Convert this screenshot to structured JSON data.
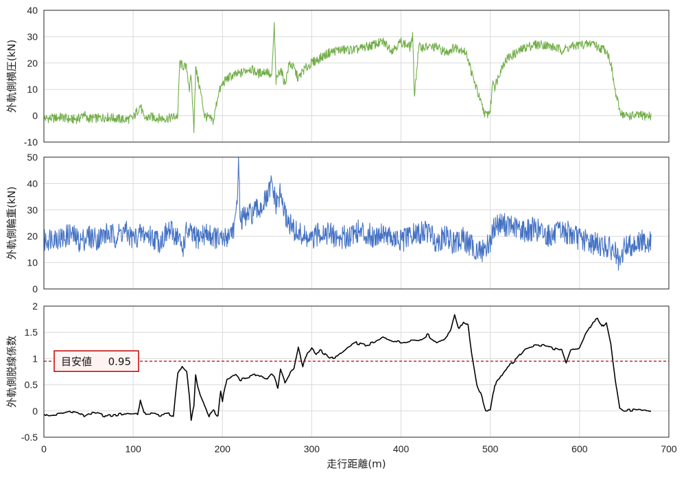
{
  "chart_data": [
    {
      "type": "line",
      "ylabel": "外軌側横圧(kN)",
      "xlim": [
        0,
        700
      ],
      "ylim": [
        -10,
        40
      ],
      "yticks": [
        -10,
        0,
        10,
        20,
        30,
        40
      ],
      "grid": true,
      "series": [
        {
          "color": "#70ad47",
          "x": [
            0,
            10,
            20,
            30,
            40,
            45,
            48,
            50,
            60,
            70,
            80,
            90,
            100,
            108,
            112,
            120,
            130,
            140,
            150,
            152,
            155,
            160,
            163,
            165,
            168,
            170,
            175,
            180,
            185,
            190,
            195,
            200,
            205,
            210,
            220,
            230,
            240,
            250,
            255,
            258,
            260,
            265,
            270,
            275,
            280,
            285,
            290,
            300,
            310,
            320,
            330,
            340,
            350,
            360,
            370,
            380,
            390,
            400,
            410,
            413,
            415,
            420,
            430,
            440,
            450,
            460,
            470,
            475,
            480,
            485,
            490,
            495,
            500,
            503,
            505,
            510,
            515,
            520,
            530,
            540,
            550,
            560,
            570,
            580,
            590,
            600,
            610,
            615,
            620,
            630,
            635,
            640,
            645,
            650,
            660,
            670,
            680
          ],
          "values": [
            -1,
            -1,
            -0.5,
            -1.5,
            -1,
            1,
            -1.5,
            -1,
            -1,
            -0.5,
            -1,
            -1.5,
            -1,
            4,
            -1,
            -0.5,
            -1,
            -1,
            0,
            20,
            19,
            18,
            10,
            15,
            -5,
            18,
            10,
            0,
            -1,
            -2,
            8,
            12,
            14,
            15,
            16,
            18,
            16,
            17,
            14,
            34,
            13,
            18,
            12,
            20,
            18,
            14,
            17,
            20,
            22,
            24,
            25,
            25,
            25,
            26,
            27,
            28,
            25,
            28,
            26,
            30,
            8,
            26,
            26,
            26,
            24,
            26,
            25,
            22,
            15,
            10,
            4,
            0,
            2,
            14,
            11,
            16,
            20,
            22,
            24,
            26,
            27,
            27,
            26,
            25,
            26,
            27,
            27,
            28,
            26,
            25,
            20,
            9,
            2,
            0,
            0,
            0,
            0
          ]
        }
      ]
    },
    {
      "type": "line",
      "ylabel": "外軌側輪重(kN)",
      "xlim": [
        0,
        700
      ],
      "ylim": [
        0,
        50
      ],
      "yticks": [
        0,
        10,
        20,
        30,
        40,
        50
      ],
      "grid": true,
      "series": [
        {
          "color": "#4472c4",
          "x": [
            0,
            10,
            20,
            30,
            40,
            50,
            60,
            70,
            80,
            90,
            100,
            110,
            120,
            130,
            140,
            150,
            155,
            160,
            170,
            180,
            190,
            200,
            210,
            215,
            218,
            220,
            230,
            240,
            250,
            255,
            260,
            265,
            270,
            280,
            290,
            300,
            310,
            320,
            330,
            340,
            350,
            360,
            370,
            380,
            390,
            400,
            410,
            420,
            430,
            440,
            450,
            460,
            470,
            480,
            490,
            500,
            505,
            510,
            520,
            530,
            540,
            550,
            560,
            570,
            580,
            590,
            600,
            610,
            620,
            630,
            640,
            645,
            650,
            660,
            670,
            680
          ],
          "values": [
            18,
            20,
            19,
            21,
            18,
            20,
            19,
            21,
            20,
            22,
            19,
            21,
            20,
            18,
            22,
            20,
            15,
            22,
            19,
            21,
            20,
            18,
            22,
            25,
            48,
            26,
            28,
            30,
            34,
            40,
            32,
            36,
            28,
            22,
            20,
            18,
            22,
            21,
            19,
            20,
            22,
            21,
            20,
            22,
            19,
            18,
            20,
            21,
            22,
            18,
            20,
            17,
            19,
            16,
            14,
            18,
            24,
            25,
            24,
            23,
            22,
            23,
            21,
            20,
            22,
            21,
            19,
            18,
            17,
            16,
            14,
            8,
            16,
            17,
            18,
            18
          ]
        }
      ]
    },
    {
      "type": "line",
      "xlabel": "走行距離(m)",
      "ylabel": "外軌側脱線係数",
      "xlim": [
        0,
        700
      ],
      "xticks": [
        0,
        100,
        200,
        300,
        400,
        500,
        600,
        700
      ],
      "ylim": [
        -0.5,
        2
      ],
      "yticks": [
        -0.5,
        0,
        0.5,
        1,
        1.5,
        2
      ],
      "grid": true,
      "reference_line": {
        "value": 0.95,
        "color": "#c00000",
        "style": "dashed"
      },
      "annotation": {
        "label": "目安値",
        "value": "0.95",
        "border_color": "#c00000"
      },
      "series": [
        {
          "color": "#000000",
          "x": [
            0,
            5,
            10,
            20,
            30,
            40,
            45,
            50,
            60,
            70,
            80,
            90,
            100,
            105,
            108,
            112,
            120,
            130,
            140,
            145,
            150,
            155,
            160,
            163,
            165,
            168,
            170,
            172,
            175,
            180,
            185,
            190,
            195,
            198,
            200,
            205,
            210,
            215,
            220,
            230,
            240,
            250,
            255,
            258,
            262,
            265,
            270,
            275,
            280,
            285,
            290,
            295,
            300,
            305,
            310,
            320,
            330,
            340,
            350,
            360,
            370,
            380,
            390,
            400,
            410,
            420,
            430,
            440,
            450,
            455,
            460,
            465,
            470,
            475,
            480,
            485,
            490,
            495,
            500,
            505,
            510,
            515,
            520,
            530,
            540,
            550,
            560,
            570,
            580,
            585,
            590,
            600,
            605,
            610,
            615,
            620,
            625,
            630,
            635,
            640,
            645,
            650,
            660,
            670,
            680
          ],
          "values": [
            -0.05,
            -0.1,
            -0.08,
            -0.05,
            0,
            -0.05,
            -0.1,
            -0.05,
            -0.05,
            -0.1,
            -0.08,
            -0.05,
            -0.05,
            -0.05,
            0.2,
            -0.05,
            -0.05,
            -0.08,
            -0.05,
            -0.1,
            0.7,
            0.85,
            0.75,
            0.3,
            -0.2,
            0.1,
            0.7,
            0.5,
            0.3,
            0.1,
            -0.1,
            0,
            -0.1,
            0.4,
            0.2,
            0.6,
            0.65,
            0.7,
            0.6,
            0.65,
            0.7,
            0.6,
            0.7,
            0.65,
            0.45,
            0.8,
            0.55,
            0.7,
            0.8,
            1.2,
            0.85,
            1.1,
            1.2,
            1.1,
            1.15,
            1.0,
            1.05,
            1.2,
            1.3,
            1.25,
            1.3,
            1.4,
            1.35,
            1.3,
            1.35,
            1.35,
            1.45,
            1.3,
            1.4,
            1.5,
            1.85,
            1.55,
            1.7,
            1.65,
            1.0,
            0.5,
            0.3,
            0,
            0,
            0.5,
            0.6,
            0.75,
            0.85,
            1.0,
            1.2,
            1.25,
            1.25,
            1.2,
            1.15,
            0.9,
            1.15,
            1.2,
            1.4,
            1.55,
            1.7,
            1.75,
            1.6,
            1.7,
            1.3,
            0.6,
            0.05,
            0,
            0.02,
            0,
            0
          ]
        }
      ]
    }
  ]
}
